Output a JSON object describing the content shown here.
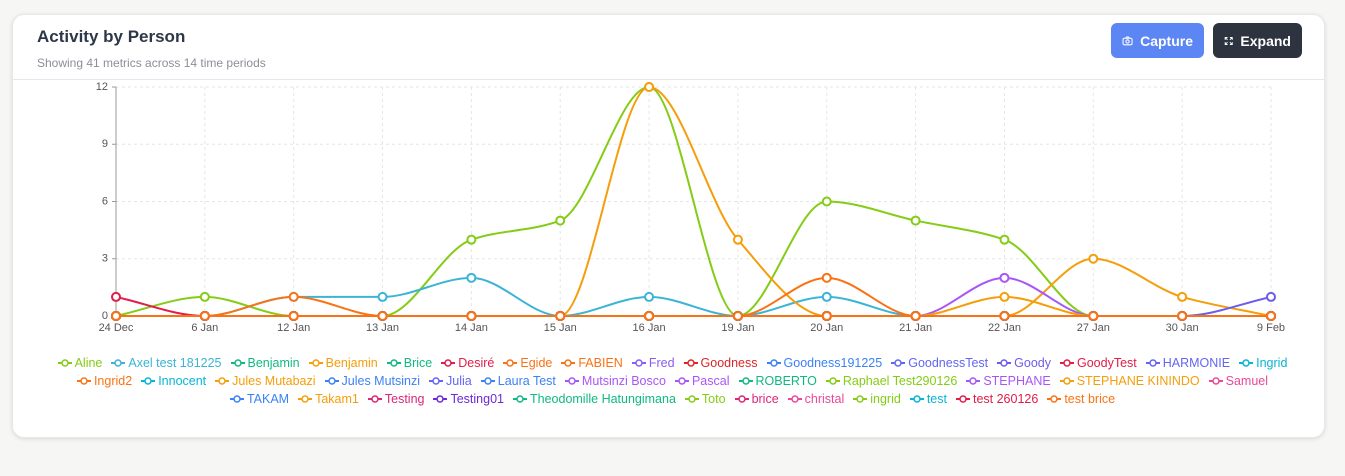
{
  "header": {
    "title": "Activity by Person",
    "subtitle": "Showing 41 metrics across 14 time periods",
    "buttons": [
      "Capture",
      "Expand"
    ]
  },
  "chart_data": {
    "type": "line",
    "grid": true,
    "smooth": true,
    "categories": [
      "24 Dec",
      "6 Jan",
      "12 Jan",
      "13 Jan",
      "14 Jan",
      "15 Jan",
      "16 Jan",
      "19 Jan",
      "20 Jan",
      "21 Jan",
      "22 Jan",
      "27 Jan",
      "30 Jan",
      "9 Feb"
    ],
    "ylim": [
      0,
      12
    ],
    "yticks": [
      0,
      3,
      6,
      9,
      12
    ],
    "series": [
      {
        "name": "Aline",
        "color": "#84cc16",
        "values": [
          0,
          1,
          0,
          0,
          4,
          5,
          12,
          0,
          6,
          5,
          4,
          0,
          0,
          0
        ]
      },
      {
        "name": "Axel test 181225",
        "color": "#3bb4d6",
        "values": [
          0,
          0,
          1,
          1,
          2,
          0,
          1,
          0,
          1,
          0,
          0,
          0,
          0,
          0
        ]
      },
      {
        "name": "Benjamin",
        "color": "#10b981",
        "values": [
          0,
          0,
          0,
          0,
          0,
          0,
          0,
          0,
          0,
          0,
          0,
          0,
          0,
          0
        ]
      },
      {
        "name": "Benjamin",
        "color": "#f59e0b",
        "values": [
          0,
          0,
          0,
          0,
          0,
          0,
          12,
          4,
          0,
          0,
          0,
          3,
          1,
          0
        ]
      },
      {
        "name": "Brice",
        "color": "#10b981",
        "values": [
          0,
          0,
          0,
          0,
          0,
          0,
          0,
          0,
          0,
          0,
          0,
          0,
          0,
          0
        ]
      },
      {
        "name": "Desiré",
        "color": "#e11d48",
        "values": [
          1,
          0,
          0,
          0,
          0,
          0,
          0,
          0,
          0,
          0,
          0,
          0,
          0,
          0
        ]
      },
      {
        "name": "Egide",
        "color": "#f97316",
        "values": [
          0,
          0,
          1,
          0,
          0,
          0,
          0,
          0,
          2,
          0,
          0,
          0,
          0,
          0
        ]
      },
      {
        "name": "FABIEN",
        "color": "#f97316",
        "values": [
          0,
          0,
          0,
          0,
          0,
          0,
          0,
          0,
          0,
          0,
          0,
          0,
          0,
          0
        ]
      },
      {
        "name": "Fred",
        "color": "#8b5cf6",
        "values": [
          0,
          0,
          0,
          0,
          0,
          0,
          0,
          0,
          0,
          0,
          0,
          0,
          0,
          0
        ]
      },
      {
        "name": "Goodness",
        "color": "#dc2626",
        "values": [
          0,
          0,
          0,
          0,
          0,
          0,
          0,
          0,
          0,
          0,
          0,
          0,
          0,
          0
        ]
      },
      {
        "name": "Goodness191225",
        "color": "#3b82f6",
        "values": [
          0,
          0,
          0,
          0,
          0,
          0,
          0,
          0,
          0,
          0,
          0,
          0,
          0,
          0
        ]
      },
      {
        "name": "GoodnessTest",
        "color": "#6366f1",
        "values": [
          0,
          0,
          0,
          0,
          0,
          0,
          0,
          0,
          0,
          0,
          0,
          0,
          0,
          0
        ]
      },
      {
        "name": "Goody",
        "color": "#6d5ce8",
        "values": [
          0,
          0,
          0,
          0,
          0,
          0,
          0,
          0,
          0,
          0,
          0,
          0,
          0,
          1
        ]
      },
      {
        "name": "GoodyTest",
        "color": "#e11d48",
        "values": [
          0,
          0,
          0,
          0,
          0,
          0,
          0,
          0,
          0,
          0,
          0,
          0,
          0,
          0
        ]
      },
      {
        "name": "HARMONIE",
        "color": "#6366f1",
        "values": [
          0,
          0,
          0,
          0,
          0,
          0,
          0,
          0,
          0,
          0,
          0,
          0,
          0,
          0
        ]
      },
      {
        "name": "Ingrid",
        "color": "#06b6d4",
        "values": [
          0,
          0,
          0,
          0,
          0,
          0,
          0,
          0,
          0,
          0,
          0,
          0,
          0,
          0
        ]
      },
      {
        "name": "Ingrid2",
        "color": "#f97316",
        "values": [
          0,
          0,
          0,
          0,
          0,
          0,
          0,
          0,
          0,
          0,
          0,
          0,
          0,
          0
        ]
      },
      {
        "name": "Innocent",
        "color": "#06b6d4",
        "values": [
          0,
          0,
          0,
          0,
          0,
          0,
          0,
          0,
          0,
          0,
          0,
          0,
          0,
          0
        ]
      },
      {
        "name": "Jules Mutabazi",
        "color": "#f59e0b",
        "values": [
          0,
          0,
          0,
          0,
          0,
          0,
          0,
          0,
          0,
          0,
          0,
          0,
          0,
          0
        ]
      },
      {
        "name": "Jules Mutsinzi",
        "color": "#3b82f6",
        "values": [
          0,
          0,
          0,
          0,
          0,
          0,
          0,
          0,
          0,
          0,
          0,
          0,
          0,
          0
        ]
      },
      {
        "name": "Julia",
        "color": "#6366f1",
        "values": [
          0,
          0,
          0,
          0,
          0,
          0,
          0,
          0,
          0,
          0,
          0,
          0,
          0,
          0
        ]
      },
      {
        "name": "Laura Test",
        "color": "#3b82f6",
        "values": [
          0,
          0,
          0,
          0,
          0,
          0,
          0,
          0,
          0,
          0,
          0,
          0,
          0,
          0
        ]
      },
      {
        "name": "Mutsinzi Bosco",
        "color": "#a855f7",
        "values": [
          0,
          0,
          0,
          0,
          0,
          0,
          0,
          0,
          0,
          0,
          2,
          0,
          0,
          0
        ]
      },
      {
        "name": "Pascal",
        "color": "#a855f7",
        "values": [
          0,
          0,
          0,
          0,
          0,
          0,
          0,
          0,
          0,
          0,
          0,
          0,
          0,
          0
        ]
      },
      {
        "name": "ROBERTO",
        "color": "#10b981",
        "values": [
          0,
          0,
          0,
          0,
          0,
          0,
          0,
          0,
          0,
          0,
          0,
          0,
          0,
          0
        ]
      },
      {
        "name": "Raphael Test290126",
        "color": "#84cc16",
        "values": [
          0,
          0,
          0,
          0,
          0,
          0,
          0,
          0,
          0,
          0,
          0,
          0,
          0,
          0
        ]
      },
      {
        "name": "STEPHANE",
        "color": "#a855f7",
        "values": [
          0,
          0,
          0,
          0,
          0,
          0,
          0,
          0,
          0,
          0,
          0,
          0,
          0,
          0
        ]
      },
      {
        "name": "STEPHANE KININDO",
        "color": "#f59e0b",
        "values": [
          0,
          0,
          0,
          0,
          0,
          0,
          0,
          0,
          0,
          0,
          0,
          0,
          0,
          0
        ]
      },
      {
        "name": "Samuel",
        "color": "#ec4899",
        "values": [
          0,
          0,
          0,
          0,
          0,
          0,
          0,
          0,
          0,
          0,
          0,
          0,
          0,
          0
        ]
      },
      {
        "name": "TAKAM",
        "color": "#3b82f6",
        "values": [
          0,
          0,
          0,
          0,
          0,
          0,
          0,
          0,
          0,
          0,
          0,
          0,
          0,
          0
        ]
      },
      {
        "name": "Takam1",
        "color": "#f59e0b",
        "values": [
          0,
          0,
          0,
          0,
          0,
          0,
          0,
          0,
          0,
          0,
          1,
          0,
          0,
          0
        ]
      },
      {
        "name": "Testing",
        "color": "#db2777",
        "values": [
          0,
          0,
          0,
          0,
          0,
          0,
          0,
          0,
          0,
          0,
          0,
          0,
          0,
          0
        ]
      },
      {
        "name": "Testing01",
        "color": "#6d28d9",
        "values": [
          0,
          0,
          0,
          0,
          0,
          0,
          0,
          0,
          0,
          0,
          0,
          0,
          0,
          0
        ]
      },
      {
        "name": "Theodomille Hatungimana",
        "color": "#10b981",
        "values": [
          0,
          0,
          0,
          0,
          0,
          0,
          0,
          0,
          0,
          0,
          0,
          0,
          0,
          0
        ]
      },
      {
        "name": "Toto",
        "color": "#84cc16",
        "values": [
          0,
          0,
          0,
          0,
          0,
          0,
          0,
          0,
          0,
          0,
          0,
          0,
          0,
          0
        ]
      },
      {
        "name": "brice",
        "color": "#db2777",
        "values": [
          0,
          0,
          0,
          0,
          0,
          0,
          0,
          0,
          0,
          0,
          0,
          0,
          0,
          0
        ]
      },
      {
        "name": "christal",
        "color": "#ec4899",
        "values": [
          0,
          0,
          0,
          0,
          0,
          0,
          0,
          0,
          0,
          0,
          0,
          0,
          0,
          0
        ]
      },
      {
        "name": "ingrid",
        "color": "#84cc16",
        "values": [
          0,
          0,
          0,
          0,
          0,
          0,
          0,
          0,
          0,
          0,
          0,
          0,
          0,
          0
        ]
      },
      {
        "name": "test",
        "color": "#06b6d4",
        "values": [
          0,
          0,
          0,
          0,
          0,
          0,
          0,
          0,
          0,
          0,
          0,
          0,
          0,
          0
        ]
      },
      {
        "name": "test 260126",
        "color": "#e11d48",
        "values": [
          0,
          0,
          0,
          0,
          0,
          0,
          0,
          0,
          0,
          0,
          0,
          0,
          0,
          0
        ]
      },
      {
        "name": "test brice",
        "color": "#f97316",
        "values": [
          0,
          0,
          0,
          0,
          0,
          0,
          0,
          0,
          0,
          0,
          0,
          0,
          0,
          0
        ]
      }
    ]
  }
}
